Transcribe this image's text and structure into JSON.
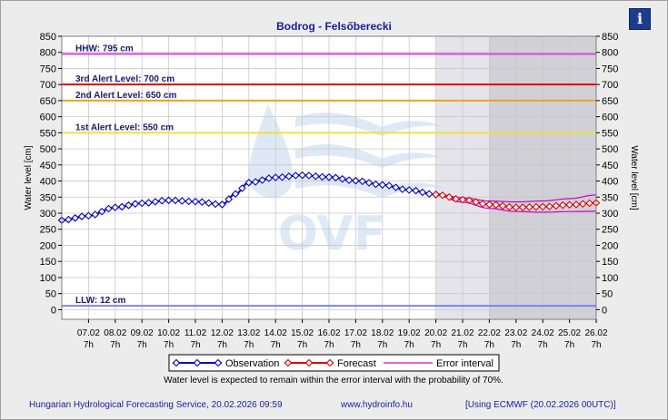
{
  "header": {
    "title": "Bodrog - Felsőberecki",
    "info_label": "i"
  },
  "footer": {
    "left": "Hungarian Hydrological Forecasting Service, 20.02.2026 09:59",
    "center": "www.hydroinfo.hu",
    "right": "[Using ECMWF (20.02.2026  00UTC)]"
  },
  "watermark": {
    "text": "OVF"
  },
  "colors": {
    "observation": "#0000cc",
    "forecast": "#dd0000",
    "error": "#cc00cc",
    "hhw": "#dd44dd",
    "alert3": "#dd0000",
    "alert2": "#f0a020",
    "alert1": "#f0e040",
    "llw": "#8080ff"
  },
  "chart_data": {
    "type": "line",
    "title": "Bodrog - Felsőberecki",
    "ylabel": "Water level [cm]",
    "ylim": [
      -30,
      850
    ],
    "yticks": [
      0,
      50,
      100,
      150,
      200,
      250,
      300,
      350,
      400,
      450,
      500,
      550,
      600,
      650,
      700,
      750,
      800,
      850
    ],
    "xlim": [
      "06.02 7h",
      "26.02 7h"
    ],
    "xtick_dates": [
      "07.02",
      "08.02",
      "09.02",
      "10.02",
      "11.02",
      "12.02",
      "13.02",
      "14.02",
      "15.02",
      "16.02",
      "17.02",
      "18.02",
      "19.02",
      "20.02",
      "21.02",
      "22.02",
      "23.02",
      "24.02",
      "25.02",
      "26.02"
    ],
    "xtick_hour": "7h",
    "grid": true,
    "legend_position": "bottom",
    "note": "Water level is expected to remain within the error interval with the probability of 70%.",
    "forecast_shading": [
      {
        "from": "20.02 7h",
        "to": "22.02 7h",
        "shade": "light"
      },
      {
        "from": "22.02 7h",
        "to": "26.02 7h",
        "shade": "dark"
      }
    ],
    "reference_lines": [
      {
        "label": "HHW: 795 cm",
        "value": 795,
        "color": "#dd44dd"
      },
      {
        "label": "3rd Alert Level: 700 cm",
        "value": 700,
        "color": "#dd0000"
      },
      {
        "label": "2nd Alert Level: 650 cm",
        "value": 650,
        "color": "#f0a020"
      },
      {
        "label": "1st Alert Level: 550 cm",
        "value": 550,
        "color": "#f0e040"
      },
      {
        "label": "LLW: 12 cm",
        "value": 12,
        "color": "#8080ff"
      }
    ],
    "series": [
      {
        "name": "Observation",
        "color": "#0000cc",
        "points": [
          [
            "06.02 7h",
            278
          ],
          [
            "07.02 7h",
            292
          ],
          [
            "08.02 7h",
            318
          ],
          [
            "09.02 7h",
            331
          ],
          [
            "10.02 7h",
            340
          ],
          [
            "11.02 7h",
            336
          ],
          [
            "12.02 7h",
            327
          ],
          [
            "12.02 19h",
            360
          ],
          [
            "13.02 7h",
            395
          ],
          [
            "14.02 7h",
            411
          ],
          [
            "15.02 7h",
            418
          ],
          [
            "16.02 7h",
            412
          ],
          [
            "17.02 7h",
            401
          ],
          [
            "18.02 7h",
            388
          ],
          [
            "19.02 7h",
            372
          ],
          [
            "20.02 7h",
            358
          ]
        ]
      },
      {
        "name": "Forecast",
        "color": "#dd0000",
        "points": [
          [
            "20.02 7h",
            358
          ],
          [
            "21.02 7h",
            342
          ],
          [
            "22.02 7h",
            327
          ],
          [
            "23.02 7h",
            318
          ],
          [
            "24.02 7h",
            320
          ],
          [
            "25.02 7h",
            326
          ],
          [
            "26.02 7h",
            332
          ]
        ]
      },
      {
        "name": "Error interval",
        "color": "#cc00cc",
        "upper": [
          [
            "20.02 7h",
            360
          ],
          [
            "21.02 7h",
            348
          ],
          [
            "22.02 7h",
            338
          ],
          [
            "23.02 7h",
            335
          ],
          [
            "24.02 7h",
            338
          ],
          [
            "25.02 7h",
            345
          ],
          [
            "26.02 7h",
            357
          ]
        ],
        "lower": [
          [
            "20.02 7h",
            356
          ],
          [
            "21.02 7h",
            334
          ],
          [
            "22.02 7h",
            315
          ],
          [
            "23.02 7h",
            305
          ],
          [
            "24.02 7h",
            303
          ],
          [
            "25.02 7h",
            305
          ],
          [
            "26.02 7h",
            306
          ]
        ]
      }
    ]
  }
}
